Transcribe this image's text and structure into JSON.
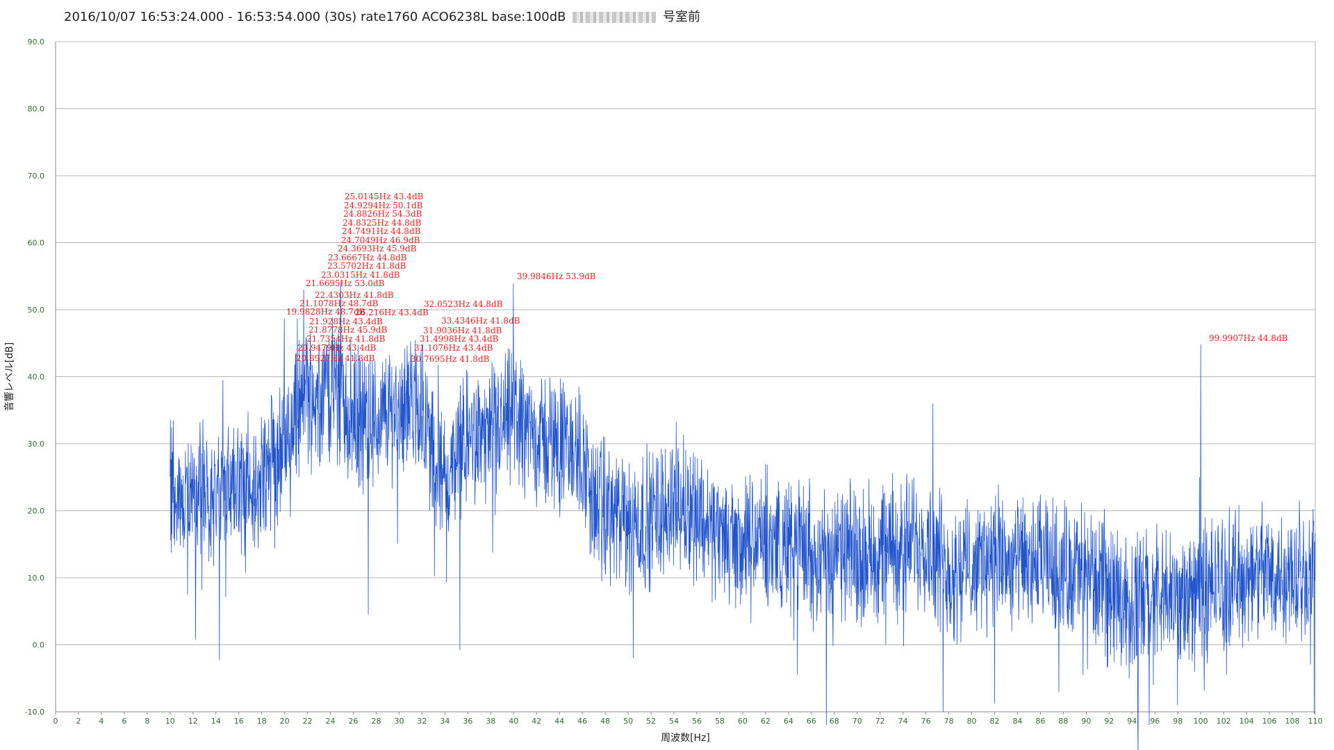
{
  "title_prefix": "2016/10/07 16:53:24.000 - 16:53:54.000 (30s) rate1760 ACO6238L base:100dB",
  "title_suffix": "号室前",
  "chart_data": {
    "type": "line",
    "xlabel": "周波数[Hz]",
    "ylabel": "音響レベル[dB]",
    "xlim": [
      0,
      110
    ],
    "ylim": [
      -10,
      90
    ],
    "x_ticks": [
      0,
      2,
      4,
      6,
      8,
      10,
      12,
      14,
      16,
      18,
      20,
      22,
      24,
      26,
      28,
      30,
      32,
      34,
      36,
      38,
      40,
      42,
      44,
      46,
      48,
      50,
      52,
      54,
      56,
      58,
      60,
      62,
      64,
      66,
      68,
      70,
      72,
      74,
      76,
      78,
      80,
      82,
      84,
      86,
      88,
      90,
      92,
      94,
      96,
      98,
      100,
      102,
      104,
      106,
      108,
      110
    ],
    "y_ticks": [
      -10,
      0,
      10,
      20,
      30,
      40,
      50,
      60,
      70,
      80,
      90
    ],
    "y_tick_labels": [
      "-10.0",
      "0.0",
      "10.0",
      "20.0",
      "30.0",
      "40.0",
      "50.0",
      "60.0",
      "70.0",
      "80.0",
      "90.0"
    ],
    "grid": "horizontal",
    "line_color": "#2255cc",
    "annotation_color": "#e0211f",
    "series": [
      {
        "x_start": 10,
        "x_end": 110,
        "envelope": [
          [
            10,
            24
          ],
          [
            12,
            22
          ],
          [
            14,
            22
          ],
          [
            16,
            24
          ],
          [
            18,
            25
          ],
          [
            20,
            30
          ],
          [
            22,
            37
          ],
          [
            24,
            38
          ],
          [
            26,
            34
          ],
          [
            28,
            33
          ],
          [
            30,
            36
          ],
          [
            32,
            35
          ],
          [
            33,
            28
          ],
          [
            34,
            24
          ],
          [
            36,
            31
          ],
          [
            38,
            31
          ],
          [
            40,
            34
          ],
          [
            42,
            31
          ],
          [
            44,
            30
          ],
          [
            46,
            28
          ],
          [
            47,
            21
          ],
          [
            50,
            18
          ],
          [
            52,
            19
          ],
          [
            54,
            22
          ],
          [
            56,
            20
          ],
          [
            58,
            16
          ],
          [
            60,
            15
          ],
          [
            62,
            16
          ],
          [
            64,
            15
          ],
          [
            66,
            14
          ],
          [
            68,
            13
          ],
          [
            70,
            14
          ],
          [
            72,
            14
          ],
          [
            74,
            15
          ],
          [
            76,
            16
          ],
          [
            78,
            11
          ],
          [
            80,
            12
          ],
          [
            82,
            13
          ],
          [
            84,
            12
          ],
          [
            86,
            12
          ],
          [
            88,
            11
          ],
          [
            90,
            11
          ],
          [
            92,
            8
          ],
          [
            94,
            7
          ],
          [
            96,
            7
          ],
          [
            98,
            7
          ],
          [
            100,
            8
          ],
          [
            102,
            10
          ],
          [
            104,
            10
          ],
          [
            106,
            11
          ],
          [
            108,
            11
          ],
          [
            110,
            11
          ]
        ],
        "peaks": [
          [
            14.6,
            39.5
          ],
          [
            19.98,
            48.7
          ],
          [
            20.89,
            41.8
          ],
          [
            20.95,
            43.4
          ],
          [
            21.11,
            48.7
          ],
          [
            21.67,
            53.0
          ],
          [
            21.74,
            41.8
          ],
          [
            21.88,
            45.9
          ],
          [
            21.93,
            43.4
          ],
          [
            22.43,
            41.8
          ],
          [
            23.03,
            41.8
          ],
          [
            23.57,
            41.8
          ],
          [
            23.67,
            44.8
          ],
          [
            24.37,
            45.9
          ],
          [
            24.7,
            46.9
          ],
          [
            24.75,
            44.8
          ],
          [
            24.83,
            44.8
          ],
          [
            24.88,
            54.3
          ],
          [
            24.93,
            50.1
          ],
          [
            25.01,
            43.4
          ],
          [
            26.22,
            43.4
          ],
          [
            27.3,
            4.5
          ],
          [
            30.77,
            41.8
          ],
          [
            31.11,
            43.4
          ],
          [
            31.5,
            43.4
          ],
          [
            31.9,
            41.8
          ],
          [
            32.05,
            44.8
          ],
          [
            33.43,
            41.8
          ],
          [
            35.3,
            -0.8
          ],
          [
            39.98,
            53.9
          ],
          [
            40.1,
            41
          ],
          [
            76.6,
            36
          ],
          [
            99.99,
            44.8
          ],
          [
            99.9,
            25
          ],
          [
            108.6,
            21.5
          ],
          [
            14.3,
            -2.3
          ],
          [
            67.3,
            -12
          ],
          [
            77.5,
            -10
          ],
          [
            94.5,
            -12
          ],
          [
            95.5,
            -12
          ]
        ]
      }
    ],
    "annotations": [
      {
        "text": "25.0145Hz  43.4dB",
        "x": 25.01,
        "y": 43.4
      },
      {
        "text": "24.9294Hz  50.1dB",
        "x": 24.93,
        "y": 50.1
      },
      {
        "text": "24.8826Hz  54.3dB",
        "x": 24.88,
        "y": 54.3
      },
      {
        "text": "24.8325Hz  44.8dB",
        "x": 24.83,
        "y": 44.8
      },
      {
        "text": "24.7491Hz  44.8dB",
        "x": 24.75,
        "y": 44.8
      },
      {
        "text": "24.7049Hz  46.9dB",
        "x": 24.7,
        "y": 46.9
      },
      {
        "text": "24.3693Hz  45.9dB",
        "x": 24.37,
        "y": 45.9
      },
      {
        "text": "23.6667Hz  44.8dB",
        "x": 23.67,
        "y": 44.8
      },
      {
        "text": "23.5702Hz  41.8dB",
        "x": 23.57,
        "y": 41.8
      },
      {
        "text": "23.0315Hz  41.8dB",
        "x": 23.03,
        "y": 41.8
      },
      {
        "text": "21.6695Hz  53.0dB",
        "x": 21.67,
        "y": 53.0
      },
      {
        "text": "22.4303Hz  41.8dB",
        "x": 22.43,
        "y": 41.8
      },
      {
        "text": "21.1078Hz  48.7dB",
        "x": 21.11,
        "y": 48.7
      },
      {
        "text": "19.9828Hz  48.7dB",
        "x": 19.98,
        "y": 48.7
      },
      {
        "text": "26.216Hz  43.4dB",
        "x": 26.22,
        "y": 43.4
      },
      {
        "text": "21.928Hz  43.4dB",
        "x": 21.93,
        "y": 43.4
      },
      {
        "text": "21.8778Hz  45.9dB",
        "x": 21.88,
        "y": 45.9
      },
      {
        "text": "21.7354Hz  41.8dB",
        "x": 21.74,
        "y": 41.8
      },
      {
        "text": "20.9479Hz  43.4dB",
        "x": 20.95,
        "y": 43.4
      },
      {
        "text": "20.8927Hz  41.8dB",
        "x": 20.89,
        "y": 41.8
      },
      {
        "text": "32.0523Hz  44.8dB",
        "x": 32.05,
        "y": 44.8
      },
      {
        "text": "33.4346Hz  41.8dB",
        "x": 33.43,
        "y": 41.8
      },
      {
        "text": "31.9036Hz  41.8dB",
        "x": 31.9,
        "y": 41.8
      },
      {
        "text": "31.4998Hz  43.4dB",
        "x": 31.5,
        "y": 43.4
      },
      {
        "text": "31.1076Hz  43.4dB",
        "x": 31.11,
        "y": 43.4
      },
      {
        "text": "30.7695Hz  41.8dB",
        "x": 30.77,
        "y": 41.8
      },
      {
        "text": "39.9846Hz  53.9dB",
        "x": 39.98,
        "y": 53.9
      },
      {
        "text": "99.9907Hz  44.8dB",
        "x": 99.99,
        "y": 44.8
      }
    ]
  }
}
